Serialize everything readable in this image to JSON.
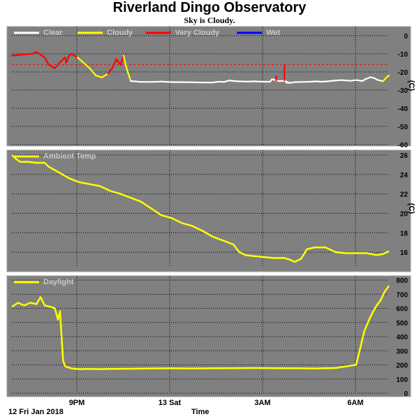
{
  "title": "Riverland Dingo Observatory",
  "subtitle": "Sky is Cloudy.",
  "date_label": "12 Fri Jan 2018",
  "x_axis_label": "Time",
  "x_ticks": [
    "9PM",
    "13 Sat",
    "3AM",
    "6AM"
  ],
  "colors": {
    "panel_bg": "#808080",
    "grid": "#000000",
    "frame_border": "#a0a0a0",
    "legend_text": "#c8c8c8",
    "clear": "#ffffff",
    "cloudy": "#ffff00",
    "very_cloudy": "#ff0000",
    "wet": "#0000ff",
    "threshold": "#ff0000",
    "temp": "#ffff00",
    "daylight": "#ffff00"
  },
  "chart_data": [
    {
      "type": "line",
      "name": "sky",
      "legend": [
        {
          "label": "Clear",
          "color_key": "clear"
        },
        {
          "label": "Cloudy",
          "color_key": "cloudy"
        },
        {
          "label": "Very Cloudy",
          "color_key": "very_cloudy"
        },
        {
          "label": "Wet",
          "color_key": "wet"
        }
      ],
      "ylim": [
        -60,
        5
      ],
      "yticks": [
        0,
        -10,
        -20,
        -30,
        -40,
        -50,
        -60
      ],
      "ylabel": "(C)",
      "threshold": -16,
      "x_hours": [
        18.2,
        19.2,
        19.4,
        19.8,
        19.9,
        20.0,
        20.3,
        20.6,
        20.8,
        20.85,
        21.0,
        21.1,
        21.4,
        21.6,
        21.8,
        22.0,
        22.3,
        22.6,
        22.9,
        23.0,
        23.1,
        23.3,
        23.5,
        23.65,
        23.8,
        24.0,
        24.5,
        25.0,
        25.5,
        26.0,
        26.5,
        27.0,
        27.5,
        28.0,
        28.3,
        28.55,
        28.8,
        29.0,
        29.3,
        29.7,
        30.0,
        30.4,
        30.8,
        30.9,
        31.2,
        31.4,
        31.55,
        31.6,
        31.62,
        31.65,
        31.7,
        31.8,
        32.0,
        32.4,
        32.8,
        33.0,
        33.3,
        33.6,
        33.9,
        34.3,
        34.7,
        35.0,
        35.3,
        35.45,
        35.7,
        35.9,
        36.0,
        36.3,
        36.5,
        36.6
      ],
      "y": [
        -11,
        -10,
        -9,
        -12,
        -14,
        -16,
        -18,
        -14,
        -12,
        -15,
        -11,
        -10,
        -12,
        -14,
        -16,
        -18,
        -22,
        -23,
        -21,
        -19,
        -18,
        -13,
        -16,
        -11,
        -18,
        -25,
        -25.5,
        -25.5,
        -25.3,
        -25.6,
        -25.6,
        -25.7,
        -25.8,
        -25.8,
        -25.4,
        -25.5,
        -24.7,
        -25,
        -25.2,
        -25.3,
        -25.2,
        -25.4,
        -25.4,
        -24,
        -25,
        -25,
        -24.8,
        -26,
        -26,
        -25.5,
        -26,
        -26,
        -25.6,
        -25.5,
        -25.4,
        -25.2,
        -25.4,
        -25.2,
        -24.8,
        -24.5,
        -24.9,
        -24.5,
        -25,
        -24,
        -22.9,
        -23.5,
        -24.2,
        -25.2,
        -22.8,
        -22
      ],
      "category": [
        "vc",
        "vc",
        "vc",
        "vc",
        "vc",
        "vc",
        "vc",
        "vc",
        "vc",
        "vc",
        "vc",
        "vc",
        "vc",
        "c",
        "c",
        "c",
        "c",
        "c",
        "c",
        "vc",
        "vc",
        "vc",
        "vc",
        "vc",
        "c",
        "c",
        "cl",
        "cl",
        "cl",
        "cl",
        "cl",
        "cl",
        "cl",
        "cl",
        "cl",
        "cl",
        "cl",
        "cl",
        "cl",
        "cl",
        "cl",
        "cl",
        "cl",
        "cl",
        "cl",
        "cl",
        "cl",
        "cl",
        "cl",
        "cl",
        "cl",
        "cl",
        "cl",
        "cl",
        "cl",
        "cl",
        "cl",
        "cl",
        "cl",
        "cl",
        "cl",
        "cl",
        "cl",
        "cl",
        "cl",
        "cl",
        "cl",
        "cl",
        "c",
        "c"
      ],
      "spikes": [
        {
          "x": 31.1,
          "y0": -22,
          "y1": -25,
          "category": "vc"
        },
        {
          "x": 31.5,
          "y0": -16,
          "y1": -25,
          "category": "vc"
        }
      ]
    },
    {
      "type": "line",
      "name": "ambient",
      "legend": [
        {
          "label": "Ambient Temp",
          "color_key": "temp"
        }
      ],
      "ylim": [
        14.5,
        26.5
      ],
      "yticks": [
        26,
        24,
        22,
        20,
        18,
        16
      ],
      "ylabel": "(C)",
      "x_hours": [
        18.2,
        18.4,
        18.6,
        19.0,
        19.4,
        19.8,
        20.0,
        20.5,
        21.0,
        21.5,
        22.0,
        22.5,
        23.0,
        23.5,
        24.0,
        24.5,
        25.0,
        25.5,
        26.0,
        26.5,
        27.0,
        27.5,
        28.0,
        28.5,
        29.0,
        29.3,
        29.6,
        30.0,
        30.5,
        31.0,
        31.5,
        31.8,
        32.0,
        32.3,
        32.6,
        33.0,
        33.5,
        34.0,
        34.5,
        35.0,
        35.5,
        36.0,
        36.3,
        36.6
      ],
      "y": [
        26,
        25.6,
        25.3,
        25.3,
        25.2,
        25.2,
        24.8,
        24.2,
        23.6,
        23.2,
        23.0,
        22.8,
        22.3,
        22.0,
        21.6,
        21.2,
        20.5,
        19.8,
        19.5,
        19.0,
        18.7,
        18.2,
        17.6,
        17.2,
        16.8,
        16.0,
        15.7,
        15.6,
        15.5,
        15.4,
        15.4,
        15.2,
        15.0,
        15.3,
        16.3,
        16.5,
        16.5,
        16.0,
        15.9,
        15.9,
        15.9,
        15.7,
        15.8,
        16.1
      ]
    },
    {
      "type": "line",
      "name": "daylight",
      "legend": [
        {
          "label": "Daylight",
          "color_key": "daylight"
        }
      ],
      "ylim": [
        0,
        830
      ],
      "yticks": [
        800,
        700,
        600,
        500,
        400,
        300,
        200,
        100,
        0
      ],
      "x_hours": [
        18.2,
        18.5,
        18.8,
        19.1,
        19.4,
        19.6,
        19.8,
        20.1,
        20.3,
        20.45,
        20.55,
        20.6,
        20.7,
        20.8,
        20.9,
        21.1,
        21.5,
        22.0,
        22.5,
        23.0,
        24.0,
        25.0,
        26.0,
        27.0,
        28.0,
        29.0,
        30.0,
        31.0,
        32.0,
        33.0,
        34.0,
        35.0,
        35.4,
        35.6,
        35.8,
        36.0,
        36.2,
        36.4,
        36.6
      ],
      "y": [
        610,
        640,
        620,
        640,
        630,
        680,
        620,
        610,
        600,
        520,
        580,
        460,
        230,
        190,
        185,
        175,
        170,
        172,
        170,
        172,
        173,
        175,
        176,
        175,
        176,
        177,
        178,
        177,
        176,
        175,
        178,
        200,
        440,
        510,
        570,
        620,
        660,
        720,
        760
      ]
    }
  ]
}
